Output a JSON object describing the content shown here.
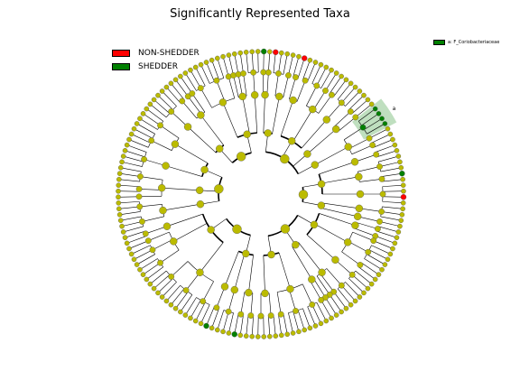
{
  "chart_data": {
    "type": "cladogram",
    "title": "Significantly Represented Taxa",
    "legend": [
      {
        "label": "NON-SHEDDER",
        "color": "#ff0000"
      },
      {
        "label": "SHEDDER",
        "color": "#008000"
      }
    ],
    "highlight_legend": [
      {
        "label": "a: F_Coriobacteriaceae",
        "color": "#008000"
      }
    ],
    "clade_marker": "a",
    "node_colors": {
      "neutral": "#bbbb00",
      "non_shedder": "#ff0000",
      "shedder": "#008000"
    },
    "highlighted_clade": {
      "name": "F_Coriobacteriaceae",
      "group": "SHEDDER"
    },
    "ranks": [
      "phylum",
      "class",
      "order",
      "family",
      "genus"
    ]
  }
}
